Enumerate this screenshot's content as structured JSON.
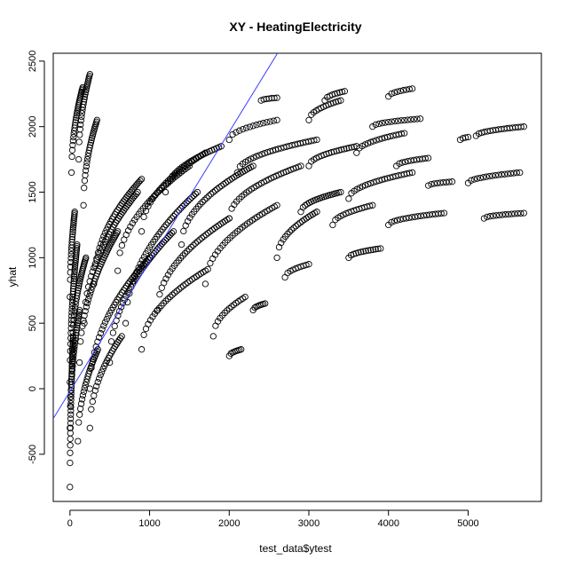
{
  "chart_data": {
    "type": "scatter",
    "title": "XY - HeatingElectricity",
    "xlabel": "test_data$ytest",
    "ylabel": "yhat",
    "xlim": [
      -210,
      5920
    ],
    "ylim": [
      -860,
      2560
    ],
    "xticks": [
      0,
      1000,
      2000,
      3000,
      4000,
      5000
    ],
    "yticks": [
      -500,
      0,
      500,
      1000,
      1500,
      2000,
      2500
    ],
    "grid": false,
    "legend": "none",
    "reference_line": {
      "intercept": -20,
      "slope": 0.99,
      "color": "#3b3bff"
    },
    "point_color": "#000000",
    "series": [
      {
        "marker": "open-circle",
        "strands": [
          {
            "x0": 0,
            "y0": -750,
            "x1": 40,
            "y1": 400,
            "n": 40
          },
          {
            "x0": 0,
            "y0": -300,
            "x1": 120,
            "y1": 600,
            "n": 30
          },
          {
            "x0": 0,
            "y0": 50,
            "x1": 90,
            "y1": 1100,
            "n": 40
          },
          {
            "x0": 30,
            "y0": 300,
            "x1": 200,
            "y1": 1000,
            "n": 30
          },
          {
            "x0": 0,
            "y0": 700,
            "x1": 60,
            "y1": 1350,
            "n": 25
          },
          {
            "x0": 20,
            "y0": 1650,
            "x1": 160,
            "y1": 2300,
            "n": 30
          },
          {
            "x0": 110,
            "y0": 1750,
            "x1": 250,
            "y1": 2400,
            "n": 25
          },
          {
            "x0": 170,
            "y0": 1400,
            "x1": 340,
            "y1": 2050,
            "n": 25
          },
          {
            "x0": 100,
            "y0": -400,
            "x1": 350,
            "y1": 300,
            "n": 25
          },
          {
            "x0": 250,
            "y0": -300,
            "x1": 650,
            "y1": 400,
            "n": 25
          },
          {
            "x0": 120,
            "y0": 200,
            "x1": 600,
            "y1": 1200,
            "n": 40
          },
          {
            "x0": 180,
            "y0": 500,
            "x1": 850,
            "y1": 1500,
            "n": 40
          },
          {
            "x0": 300,
            "y0": 800,
            "x1": 900,
            "y1": 1600,
            "n": 35
          },
          {
            "x0": 250,
            "y0": 0,
            "x1": 1000,
            "y1": 1000,
            "n": 40
          },
          {
            "x0": 500,
            "y0": 200,
            "x1": 1300,
            "y1": 1200,
            "n": 40
          },
          {
            "x0": 700,
            "y0": 500,
            "x1": 1600,
            "y1": 1500,
            "n": 40
          },
          {
            "x0": 600,
            "y0": 900,
            "x1": 1500,
            "y1": 1700,
            "n": 35
          },
          {
            "x0": 900,
            "y0": 1200,
            "x1": 1700,
            "y1": 1800,
            "n": 30
          },
          {
            "x0": 1200,
            "y0": 1500,
            "x1": 1900,
            "y1": 1850,
            "n": 25
          },
          {
            "x0": 1400,
            "y0": 1100,
            "x1": 2300,
            "y1": 1700,
            "n": 35
          },
          {
            "x0": 1100,
            "y0": 600,
            "x1": 2000,
            "y1": 1300,
            "n": 35
          },
          {
            "x0": 900,
            "y0": 300,
            "x1": 1700,
            "y1": 900,
            "n": 30
          },
          {
            "x0": 1700,
            "y0": 800,
            "x1": 2600,
            "y1": 1400,
            "n": 30
          },
          {
            "x0": 1800,
            "y0": 400,
            "x1": 2200,
            "y1": 700,
            "n": 15
          },
          {
            "x0": 2000,
            "y0": 250,
            "x1": 2150,
            "y1": 300,
            "n": 8
          },
          {
            "x0": 2300,
            "y0": 600,
            "x1": 2450,
            "y1": 650,
            "n": 8
          },
          {
            "x0": 2000,
            "y0": 1300,
            "x1": 2900,
            "y1": 1700,
            "n": 30
          },
          {
            "x0": 2100,
            "y0": 1650,
            "x1": 3100,
            "y1": 1900,
            "n": 30
          },
          {
            "x0": 2000,
            "y0": 1900,
            "x1": 2600,
            "y1": 2050,
            "n": 15
          },
          {
            "x0": 2400,
            "y0": 2200,
            "x1": 2600,
            "y1": 2220,
            "n": 7
          },
          {
            "x0": 2600,
            "y0": 1000,
            "x1": 3100,
            "y1": 1350,
            "n": 20
          },
          {
            "x0": 2700,
            "y0": 850,
            "x1": 3000,
            "y1": 950,
            "n": 10
          },
          {
            "x0": 2900,
            "y0": 1350,
            "x1": 3400,
            "y1": 1500,
            "n": 20
          },
          {
            "x0": 3000,
            "y0": 1700,
            "x1": 3600,
            "y1": 1850,
            "n": 20
          },
          {
            "x0": 3000,
            "y0": 2050,
            "x1": 3400,
            "y1": 2200,
            "n": 14
          },
          {
            "x0": 3200,
            "y0": 2200,
            "x1": 3450,
            "y1": 2270,
            "n": 9
          },
          {
            "x0": 3300,
            "y0": 1250,
            "x1": 3800,
            "y1": 1400,
            "n": 16
          },
          {
            "x0": 3500,
            "y0": 1000,
            "x1": 3900,
            "y1": 1070,
            "n": 14
          },
          {
            "x0": 3500,
            "y0": 1450,
            "x1": 4300,
            "y1": 1650,
            "n": 24
          },
          {
            "x0": 3600,
            "y0": 1800,
            "x1": 4200,
            "y1": 1950,
            "n": 18
          },
          {
            "x0": 3800,
            "y0": 2000,
            "x1": 4400,
            "y1": 2060,
            "n": 16
          },
          {
            "x0": 4000,
            "y0": 2230,
            "x1": 4300,
            "y1": 2290,
            "n": 9
          },
          {
            "x0": 4000,
            "y0": 1250,
            "x1": 4700,
            "y1": 1340,
            "n": 20
          },
          {
            "x0": 4100,
            "y0": 1700,
            "x1": 4500,
            "y1": 1760,
            "n": 12
          },
          {
            "x0": 4500,
            "y0": 1550,
            "x1": 4800,
            "y1": 1580,
            "n": 9
          },
          {
            "x0": 5000,
            "y0": 1570,
            "x1": 5650,
            "y1": 1650,
            "n": 18
          },
          {
            "x0": 5200,
            "y0": 1300,
            "x1": 5700,
            "y1": 1340,
            "n": 14
          },
          {
            "x0": 5100,
            "y0": 1930,
            "x1": 5700,
            "y1": 2000,
            "n": 18
          },
          {
            "x0": 4900,
            "y0": 1900,
            "x1": 5000,
            "y1": 1920,
            "n": 4
          }
        ]
      }
    ]
  }
}
